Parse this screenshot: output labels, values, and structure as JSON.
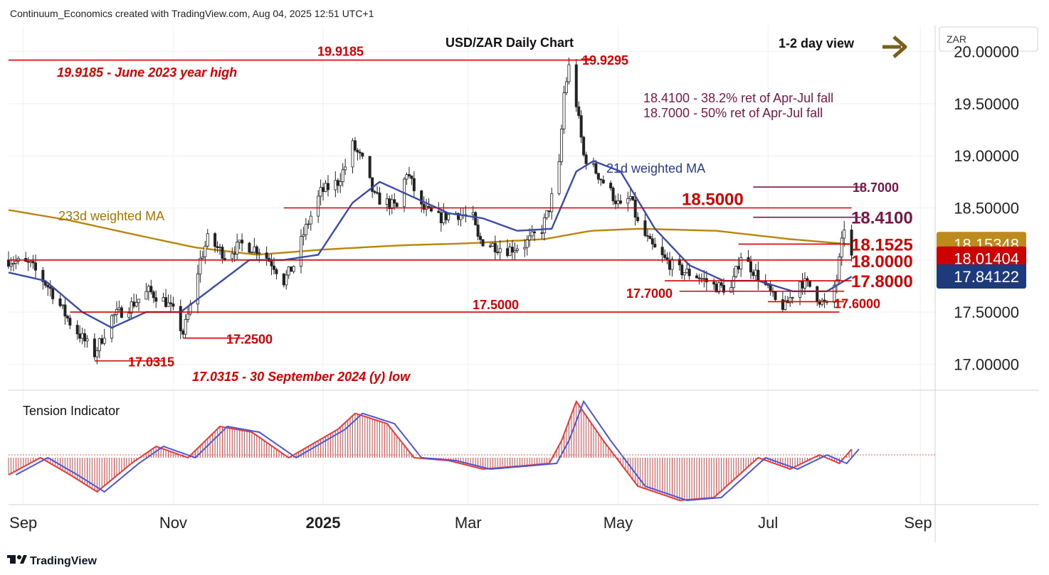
{
  "header": {
    "caption": "Continuum_Economics created with TradingView.com, Aug 04, 2025 12:51 UTC+1",
    "title": "USD/ZAR Daily Chart",
    "view_label": "1-2 day view",
    "currency": "ZAR",
    "view_arrow_color": "#7a5f1a"
  },
  "footer": {
    "brand": "TradingView"
  },
  "colors": {
    "red_level": "#d40000",
    "purple_level": "#7a1645",
    "ma21": "#3a4ba8",
    "ma233": "#b8860b",
    "candle": "#222222",
    "tension_bar": "#e04040",
    "tension_line_a": "#e83a3a",
    "tension_line_b": "#4a55d8",
    "badge_gold": "#bd8a1e",
    "badge_red": "#cc0000",
    "badge_navy": "#1f3a7a"
  },
  "chart_data": {
    "type": "candlestick",
    "title": "USD/ZAR Daily Chart",
    "x_tick_labels": [
      "Sep",
      "Nov",
      "2025",
      "Mar",
      "May",
      "Jul",
      "Sep"
    ],
    "x_tick_dates": [
      "2024-09-01",
      "2024-11-01",
      "2025-01-01",
      "2025-03-01",
      "2025-05-01",
      "2025-07-01",
      "2025-09-01"
    ],
    "y_tick_labels": [
      "20.00000",
      "19.50000",
      "19.00000",
      "18.50000",
      "17.50000",
      "17.00000"
    ],
    "y_tick_values": [
      20.0,
      19.5,
      19.0,
      18.5,
      17.5,
      17.0
    ],
    "y_range": [
      16.75,
      20.25
    ],
    "price_badges": [
      {
        "label": "18.15348",
        "value": 18.15348,
        "color": "gold"
      },
      {
        "label": "18.01404",
        "value": 18.01404,
        "color": "red"
      },
      {
        "label": "17.84122",
        "value": 17.84122,
        "color": "navy"
      }
    ],
    "horizontal_levels": [
      {
        "value": 19.9185,
        "label": "19.9185",
        "note": "19.9185 - June 2023 year high",
        "color": "red"
      },
      {
        "value": 18.5,
        "label": "18.5000",
        "color": "red"
      },
      {
        "value": 18.0,
        "label": "18.0000",
        "color": "red"
      },
      {
        "value": 17.5,
        "label": "17.5000",
        "color": "red"
      },
      {
        "value": 18.7,
        "label": "18.7000",
        "color": "purple"
      },
      {
        "value": 18.41,
        "label": "18.4100",
        "color": "purple"
      },
      {
        "value": 18.1525,
        "label": "18.1525",
        "color": "red"
      },
      {
        "value": 17.8,
        "label": "17.8000",
        "color": "red"
      },
      {
        "value": 17.7,
        "label": "17.7000",
        "color": "red"
      },
      {
        "value": 17.6,
        "label": "17.6000",
        "color": "red"
      },
      {
        "value": 19.9295,
        "label": "19.9295",
        "color": "red"
      },
      {
        "value": 17.25,
        "label": "17.2500",
        "color": "red"
      },
      {
        "value": 17.0315,
        "label": "17.0315",
        "color": "red"
      }
    ],
    "annotations": [
      "18.4100 - 38.2% ret of Apr-Jul fall",
      "18.7000 - 50% ret of Apr-Jul fall",
      "17.0315 - 30 September 2024 (y) low"
    ],
    "series_labels": {
      "ma21": "21d weighted MA",
      "ma233": "233d weighted MA",
      "indicator": "Tension Indicator"
    },
    "price_path": [
      [
        "2024-08-26",
        18.0
      ],
      [
        "2024-09-04",
        17.95
      ],
      [
        "2024-09-12",
        17.72
      ],
      [
        "2024-09-20",
        17.4
      ],
      [
        "2024-09-30",
        17.1
      ],
      [
        "2024-10-07",
        17.45
      ],
      [
        "2024-10-14",
        17.55
      ],
      [
        "2024-10-22",
        17.7
      ],
      [
        "2024-10-29",
        17.6
      ],
      [
        "2024-11-01",
        17.5
      ],
      [
        "2024-11-05",
        17.3
      ],
      [
        "2024-11-08",
        17.55
      ],
      [
        "2024-11-12",
        18.0
      ],
      [
        "2024-11-15",
        18.2
      ],
      [
        "2024-11-22",
        18.05
      ],
      [
        "2024-11-29",
        18.15
      ],
      [
        "2024-12-06",
        18.1
      ],
      [
        "2024-12-12",
        17.95
      ],
      [
        "2024-12-16",
        17.8
      ],
      [
        "2024-12-20",
        17.95
      ],
      [
        "2024-12-24",
        18.25
      ],
      [
        "2024-12-31",
        18.65
      ],
      [
        "2025-01-07",
        18.75
      ],
      [
        "2025-01-10",
        18.9
      ],
      [
        "2025-01-13",
        19.1
      ],
      [
        "2025-01-17",
        18.95
      ],
      [
        "2025-01-22",
        18.6
      ],
      [
        "2025-01-27",
        18.55
      ],
      [
        "2025-01-31",
        18.5
      ],
      [
        "2025-02-04",
        18.85
      ],
      [
        "2025-02-10",
        18.5
      ],
      [
        "2025-02-17",
        18.4
      ],
      [
        "2025-02-24",
        18.45
      ],
      [
        "2025-03-03",
        18.4
      ],
      [
        "2025-03-05",
        18.2
      ],
      [
        "2025-03-10",
        18.15
      ],
      [
        "2025-03-17",
        18.1
      ],
      [
        "2025-03-24",
        18.15
      ],
      [
        "2025-03-31",
        18.3
      ],
      [
        "2025-04-03",
        18.5
      ],
      [
        "2025-04-07",
        18.9
      ],
      [
        "2025-04-09",
        19.6
      ],
      [
        "2025-04-11",
        19.85
      ],
      [
        "2025-04-14",
        19.5
      ],
      [
        "2025-04-17",
        19.0
      ],
      [
        "2025-04-22",
        18.85
      ],
      [
        "2025-04-28",
        18.65
      ],
      [
        "2025-05-02",
        18.5
      ],
      [
        "2025-05-06",
        18.6
      ],
      [
        "2025-05-09",
        18.35
      ],
      [
        "2025-05-14",
        18.15
      ],
      [
        "2025-05-20",
        18.0
      ],
      [
        "2025-05-26",
        17.9
      ],
      [
        "2025-06-02",
        17.85
      ],
      [
        "2025-06-09",
        17.75
      ],
      [
        "2025-06-16",
        17.72
      ],
      [
        "2025-06-20",
        18.05
      ],
      [
        "2025-06-25",
        17.9
      ],
      [
        "2025-06-30",
        17.75
      ],
      [
        "2025-07-04",
        17.6
      ],
      [
        "2025-07-08",
        17.55
      ],
      [
        "2025-07-14",
        17.8
      ],
      [
        "2025-07-18",
        17.75
      ],
      [
        "2025-07-22",
        17.62
      ],
      [
        "2025-07-25",
        17.55
      ],
      [
        "2025-07-29",
        17.82
      ],
      [
        "2025-08-01",
        18.32
      ],
      [
        "2025-08-04",
        18.02
      ]
    ],
    "ma21_path": [
      [
        "2024-08-26",
        17.88
      ],
      [
        "2024-09-10",
        17.8
      ],
      [
        "2024-09-25",
        17.5
      ],
      [
        "2024-10-07",
        17.35
      ],
      [
        "2024-10-21",
        17.5
      ],
      [
        "2024-11-04",
        17.5
      ],
      [
        "2024-11-18",
        17.75
      ],
      [
        "2024-12-02",
        18.0
      ],
      [
        "2024-12-16",
        18.0
      ],
      [
        "2024-12-30",
        18.05
      ],
      [
        "2025-01-13",
        18.55
      ],
      [
        "2025-01-24",
        18.75
      ],
      [
        "2025-02-07",
        18.6
      ],
      [
        "2025-02-21",
        18.45
      ],
      [
        "2025-03-07",
        18.4
      ],
      [
        "2025-03-21",
        18.28
      ],
      [
        "2025-04-04",
        18.3
      ],
      [
        "2025-04-14",
        18.85
      ],
      [
        "2025-04-21",
        18.95
      ],
      [
        "2025-05-02",
        18.85
      ],
      [
        "2025-05-16",
        18.3
      ],
      [
        "2025-05-30",
        17.95
      ],
      [
        "2025-06-13",
        17.8
      ],
      [
        "2025-06-27",
        17.8
      ],
      [
        "2025-07-11",
        17.7
      ],
      [
        "2025-07-25",
        17.7
      ],
      [
        "2025-08-04",
        17.84
      ]
    ],
    "ma233_path": [
      [
        "2024-08-26",
        18.48
      ],
      [
        "2024-09-20",
        18.38
      ],
      [
        "2024-10-15",
        18.25
      ],
      [
        "2024-11-10",
        18.12
      ],
      [
        "2024-12-05",
        18.05
      ],
      [
        "2025-01-01",
        18.1
      ],
      [
        "2025-02-01",
        18.14
      ],
      [
        "2025-03-01",
        18.16
      ],
      [
        "2025-04-01",
        18.2
      ],
      [
        "2025-04-20",
        18.28
      ],
      [
        "2025-05-10",
        18.3
      ],
      [
        "2025-06-10",
        18.28
      ],
      [
        "2025-07-10",
        18.2
      ],
      [
        "2025-08-04",
        18.15
      ]
    ],
    "tension_path": [
      [
        "2024-08-26",
        -0.3
      ],
      [
        "2024-09-08",
        0.0
      ],
      [
        "2024-09-20",
        -0.3
      ],
      [
        "2024-10-01",
        -0.6
      ],
      [
        "2024-10-15",
        -0.1
      ],
      [
        "2024-10-25",
        0.2
      ],
      [
        "2024-11-07",
        0.0
      ],
      [
        "2024-11-20",
        0.55
      ],
      [
        "2024-12-03",
        0.45
      ],
      [
        "2024-12-18",
        0.0
      ],
      [
        "2025-01-07",
        0.5
      ],
      [
        "2025-01-14",
        0.78
      ],
      [
        "2025-01-27",
        0.6
      ],
      [
        "2025-02-07",
        0.0
      ],
      [
        "2025-02-21",
        -0.05
      ],
      [
        "2025-03-07",
        -0.2
      ],
      [
        "2025-03-21",
        -0.15
      ],
      [
        "2025-04-03",
        -0.1
      ],
      [
        "2025-04-08",
        0.3
      ],
      [
        "2025-04-14",
        0.99
      ],
      [
        "2025-04-25",
        0.3
      ],
      [
        "2025-05-09",
        -0.5
      ],
      [
        "2025-05-26",
        -0.75
      ],
      [
        "2025-06-09",
        -0.7
      ],
      [
        "2025-06-27",
        0.0
      ],
      [
        "2025-07-10",
        -0.2
      ],
      [
        "2025-07-22",
        0.05
      ],
      [
        "2025-07-30",
        -0.1
      ],
      [
        "2025-08-04",
        0.15
      ]
    ],
    "tension_range": [
      -0.8,
      1.1
    ],
    "grid": true,
    "legend": "none"
  }
}
